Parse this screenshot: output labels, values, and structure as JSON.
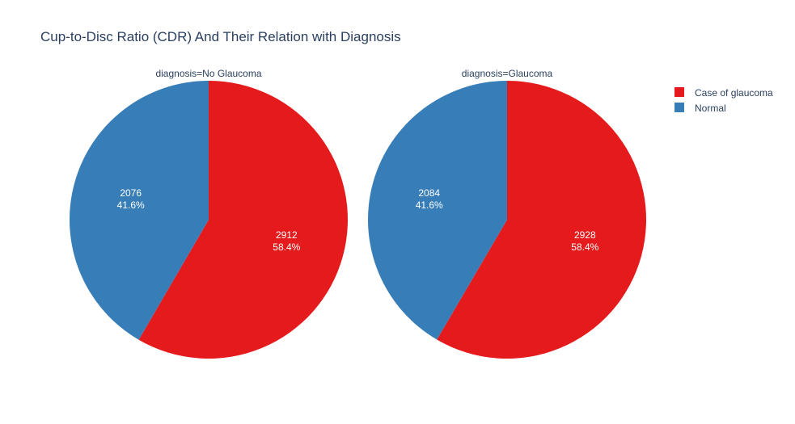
{
  "chart_data": {
    "type": "pie",
    "title": "Cup-to-Disc Ratio (CDR) And Their Relation with Diagnosis",
    "legend": {
      "placement": "top-right",
      "items": [
        {
          "label": "Case of glaucoma",
          "color": "#e41a1c"
        },
        {
          "label": "Normal",
          "color": "#377eb8"
        }
      ]
    },
    "pies": [
      {
        "subtitle": "diagnosis=No Glaucoma",
        "slices": [
          {
            "label": "Case of glaucoma",
            "value": 2912,
            "percent": "58.4%",
            "color": "#e41a1c"
          },
          {
            "label": "Normal",
            "value": 2076,
            "percent": "41.6%",
            "color": "#377eb8"
          }
        ]
      },
      {
        "subtitle": "diagnosis=Glaucoma",
        "slices": [
          {
            "label": "Case of glaucoma",
            "value": 2928,
            "percent": "58.4%",
            "color": "#e41a1c"
          },
          {
            "label": "Normal",
            "value": 2084,
            "percent": "41.6%",
            "color": "#377eb8"
          }
        ]
      }
    ]
  }
}
